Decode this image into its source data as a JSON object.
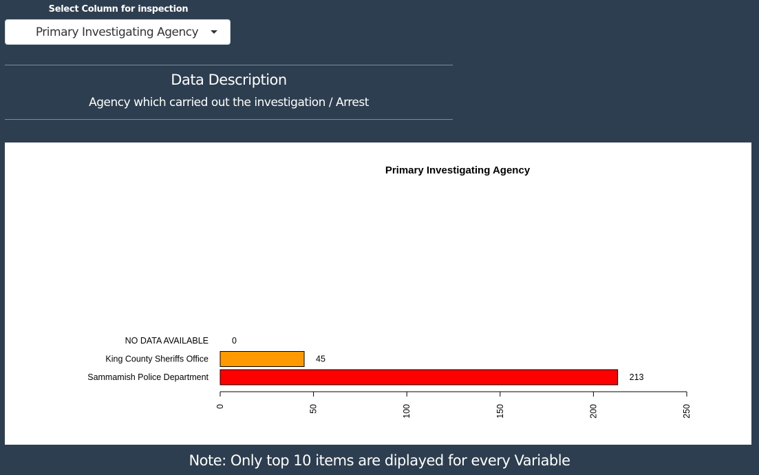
{
  "controls": {
    "select_label": "Select Column for inspection",
    "selected_column": "Primary Investigating Agency"
  },
  "description": {
    "title": "Data Description",
    "text": "Agency which carried out the investigation / Arrest"
  },
  "note": "Note: Only top 10 items are diplayed for every Variable",
  "chart_data": {
    "type": "bar",
    "orientation": "horizontal",
    "title": "Primary Investigating Agency",
    "categories": [
      "Sammamish Police Department",
      "King County Sheriffs Office",
      "NO DATA AVAILABLE"
    ],
    "values": [
      213,
      45,
      0
    ],
    "colors": [
      "#ff0000",
      "#ff9900",
      "#ffff00"
    ],
    "xlim": [
      0,
      250
    ],
    "xticks": [
      "0",
      "50",
      "100",
      "150",
      "200",
      "250"
    ],
    "xlabel": "",
    "ylabel": "",
    "grid": false
  }
}
